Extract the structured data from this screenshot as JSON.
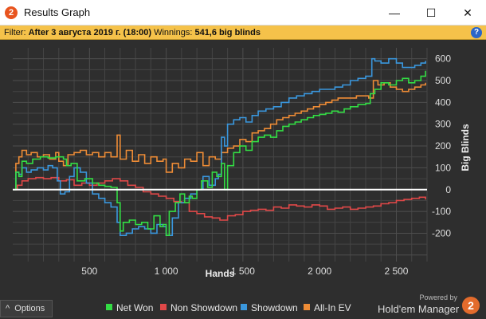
{
  "window": {
    "title": "Results Graph",
    "app_icon_text": "2",
    "minimize_label": "—",
    "maximize_label": "☐",
    "close_label": "✕"
  },
  "filter": {
    "prefix": "Filter:",
    "value": "After 3 августа 2019 г. (18:00)",
    "winnings_label": "Winnings:",
    "winnings_value": "541,6 big blinds",
    "help_icon_text": "?"
  },
  "options_button": {
    "label": "Options",
    "icon": "^"
  },
  "branding": {
    "powered_by": "Powered by",
    "name": "Hold'em Manager",
    "badge": "2"
  },
  "colors": {
    "net_won": "#33dd44",
    "non_showdown": "#e04848",
    "showdown": "#3a97dd",
    "all_in_ev": "#ee8c36",
    "zero_line": "#ffffff",
    "plot_bg": "#2e2e2e",
    "grid": "#454545"
  },
  "chart_data": {
    "type": "line",
    "xlabel": "Hands",
    "ylabel": "Big Blinds",
    "xlim": [
      0,
      2700
    ],
    "ylim": [
      -330,
      650
    ],
    "x_ticks": [
      500,
      1000,
      1500,
      2000,
      2500
    ],
    "x_tick_labels": [
      "500",
      "1 000",
      "1 500",
      "2 000",
      "2 500"
    ],
    "y_ticks": [
      -200,
      -100,
      0,
      100,
      200,
      300,
      400,
      500,
      600
    ],
    "y_tick_labels": [
      "-200",
      "-100",
      "0",
      "100",
      "200",
      "300",
      "400",
      "500",
      "600"
    ],
    "grid": true,
    "legend_position": "bottom",
    "series": [
      {
        "name": "Net Won",
        "points": [
          [
            0,
            0
          ],
          [
            20,
            80
          ],
          [
            40,
            60
          ],
          [
            60,
            130
          ],
          [
            90,
            120
          ],
          [
            130,
            140
          ],
          [
            180,
            150
          ],
          [
            230,
            145
          ],
          [
            280,
            150
          ],
          [
            330,
            140
          ],
          [
            350,
            110
          ],
          [
            380,
            120
          ],
          [
            420,
            40
          ],
          [
            470,
            50
          ],
          [
            520,
            30
          ],
          [
            560,
            20
          ],
          [
            600,
            15
          ],
          [
            640,
            10
          ],
          [
            680,
            -60
          ],
          [
            700,
            -190
          ],
          [
            720,
            -150
          ],
          [
            760,
            -140
          ],
          [
            800,
            -160
          ],
          [
            840,
            -150
          ],
          [
            880,
            -180
          ],
          [
            920,
            -120
          ],
          [
            960,
            -170
          ],
          [
            980,
            -160
          ],
          [
            1000,
            -210
          ],
          [
            1020,
            -100
          ],
          [
            1060,
            -60
          ],
          [
            1090,
            -20
          ],
          [
            1120,
            -60
          ],
          [
            1150,
            -30
          ],
          [
            1170,
            -40
          ],
          [
            1200,
            0
          ],
          [
            1230,
            40
          ],
          [
            1270,
            10
          ],
          [
            1300,
            80
          ],
          [
            1330,
            60
          ],
          [
            1360,
            120
          ],
          [
            1380,
            0
          ],
          [
            1400,
            110
          ],
          [
            1440,
            170
          ],
          [
            1480,
            200
          ],
          [
            1520,
            180
          ],
          [
            1560,
            220
          ],
          [
            1600,
            240
          ],
          [
            1640,
            250
          ],
          [
            1680,
            240
          ],
          [
            1720,
            270
          ],
          [
            1760,
            290
          ],
          [
            1800,
            300
          ],
          [
            1840,
            310
          ],
          [
            1880,
            320
          ],
          [
            1920,
            330
          ],
          [
            1960,
            340
          ],
          [
            2000,
            345
          ],
          [
            2040,
            350
          ],
          [
            2080,
            360
          ],
          [
            2120,
            355
          ],
          [
            2160,
            370
          ],
          [
            2200,
            380
          ],
          [
            2250,
            390
          ],
          [
            2300,
            395
          ],
          [
            2330,
            440
          ],
          [
            2360,
            460
          ],
          [
            2400,
            490
          ],
          [
            2450,
            480
          ],
          [
            2500,
            500
          ],
          [
            2540,
            510
          ],
          [
            2580,
            490
          ],
          [
            2620,
            500
          ],
          [
            2660,
            520
          ],
          [
            2690,
            545
          ]
        ]
      },
      {
        "name": "Non Showdown",
        "points": [
          [
            0,
            0
          ],
          [
            30,
            20
          ],
          [
            60,
            40
          ],
          [
            100,
            50
          ],
          [
            150,
            55
          ],
          [
            200,
            50
          ],
          [
            250,
            55
          ],
          [
            300,
            40
          ],
          [
            350,
            45
          ],
          [
            400,
            20
          ],
          [
            450,
            30
          ],
          [
            500,
            20
          ],
          [
            550,
            30
          ],
          [
            600,
            40
          ],
          [
            650,
            50
          ],
          [
            700,
            40
          ],
          [
            750,
            20
          ],
          [
            800,
            10
          ],
          [
            850,
            -10
          ],
          [
            900,
            -20
          ],
          [
            950,
            -30
          ],
          [
            1000,
            -40
          ],
          [
            1050,
            -55
          ],
          [
            1100,
            -60
          ],
          [
            1150,
            -100
          ],
          [
            1200,
            -110
          ],
          [
            1250,
            -125
          ],
          [
            1300,
            -130
          ],
          [
            1350,
            -140
          ],
          [
            1400,
            -120
          ],
          [
            1450,
            -115
          ],
          [
            1500,
            -100
          ],
          [
            1550,
            -95
          ],
          [
            1600,
            -90
          ],
          [
            1650,
            -95
          ],
          [
            1700,
            -80
          ],
          [
            1750,
            -85
          ],
          [
            1800,
            -70
          ],
          [
            1850,
            -75
          ],
          [
            1900,
            -80
          ],
          [
            1950,
            -70
          ],
          [
            2000,
            -75
          ],
          [
            2050,
            -90
          ],
          [
            2100,
            -85
          ],
          [
            2150,
            -80
          ],
          [
            2200,
            -90
          ],
          [
            2250,
            -85
          ],
          [
            2300,
            -80
          ],
          [
            2350,
            -75
          ],
          [
            2400,
            -65
          ],
          [
            2450,
            -60
          ],
          [
            2500,
            -50
          ],
          [
            2550,
            -45
          ],
          [
            2600,
            -40
          ],
          [
            2650,
            -35
          ],
          [
            2690,
            -45
          ]
        ]
      },
      {
        "name": "Showdown",
        "points": [
          [
            0,
            0
          ],
          [
            20,
            80
          ],
          [
            40,
            70
          ],
          [
            60,
            100
          ],
          [
            90,
            80
          ],
          [
            120,
            90
          ],
          [
            160,
            100
          ],
          [
            200,
            90
          ],
          [
            230,
            110
          ],
          [
            260,
            100
          ],
          [
            290,
            40
          ],
          [
            310,
            -20
          ],
          [
            340,
            -10
          ],
          [
            370,
            60
          ],
          [
            400,
            100
          ],
          [
            440,
            80
          ],
          [
            480,
            30
          ],
          [
            520,
            -20
          ],
          [
            560,
            -40
          ],
          [
            600,
            -60
          ],
          [
            640,
            -80
          ],
          [
            680,
            -150
          ],
          [
            700,
            -210
          ],
          [
            740,
            -200
          ],
          [
            780,
            -180
          ],
          [
            820,
            -170
          ],
          [
            860,
            -180
          ],
          [
            900,
            -200
          ],
          [
            940,
            -160
          ],
          [
            980,
            -170
          ],
          [
            1000,
            -210
          ],
          [
            1040,
            -130
          ],
          [
            1080,
            -60
          ],
          [
            1120,
            -40
          ],
          [
            1160,
            -20
          ],
          [
            1200,
            0
          ],
          [
            1240,
            60
          ],
          [
            1280,
            20
          ],
          [
            1320,
            50
          ],
          [
            1340,
            70
          ],
          [
            1360,
            240
          ],
          [
            1380,
            200
          ],
          [
            1400,
            300
          ],
          [
            1440,
            320
          ],
          [
            1480,
            330
          ],
          [
            1520,
            310
          ],
          [
            1560,
            340
          ],
          [
            1600,
            360
          ],
          [
            1650,
            370
          ],
          [
            1700,
            380
          ],
          [
            1750,
            400
          ],
          [
            1800,
            420
          ],
          [
            1850,
            430
          ],
          [
            1900,
            440
          ],
          [
            1950,
            450
          ],
          [
            2000,
            460
          ],
          [
            2050,
            460
          ],
          [
            2100,
            470
          ],
          [
            2150,
            480
          ],
          [
            2200,
            500
          ],
          [
            2250,
            510
          ],
          [
            2300,
            520
          ],
          [
            2340,
            600
          ],
          [
            2360,
            590
          ],
          [
            2400,
            580
          ],
          [
            2450,
            600
          ],
          [
            2500,
            580
          ],
          [
            2540,
            560
          ],
          [
            2580,
            560
          ],
          [
            2620,
            570
          ],
          [
            2660,
            580
          ],
          [
            2690,
            590
          ]
        ]
      },
      {
        "name": "All-In EV",
        "points": [
          [
            0,
            0
          ],
          [
            20,
            120
          ],
          [
            40,
            150
          ],
          [
            60,
            180
          ],
          [
            90,
            160
          ],
          [
            120,
            170
          ],
          [
            160,
            150
          ],
          [
            200,
            160
          ],
          [
            240,
            140
          ],
          [
            280,
            170
          ],
          [
            300,
            130
          ],
          [
            330,
            110
          ],
          [
            360,
            160
          ],
          [
            400,
            170
          ],
          [
            440,
            180
          ],
          [
            480,
            160
          ],
          [
            520,
            170
          ],
          [
            560,
            150
          ],
          [
            600,
            170
          ],
          [
            640,
            150
          ],
          [
            680,
            250
          ],
          [
            700,
            140
          ],
          [
            740,
            180
          ],
          [
            780,
            130
          ],
          [
            820,
            160
          ],
          [
            860,
            120
          ],
          [
            900,
            150
          ],
          [
            940,
            130
          ],
          [
            980,
            140
          ],
          [
            1000,
            80
          ],
          [
            1040,
            120
          ],
          [
            1080,
            100
          ],
          [
            1120,
            140
          ],
          [
            1160,
            130
          ],
          [
            1200,
            170
          ],
          [
            1240,
            110
          ],
          [
            1280,
            150
          ],
          [
            1320,
            140
          ],
          [
            1360,
            170
          ],
          [
            1400,
            190
          ],
          [
            1440,
            200
          ],
          [
            1480,
            230
          ],
          [
            1520,
            220
          ],
          [
            1560,
            260
          ],
          [
            1600,
            270
          ],
          [
            1640,
            280
          ],
          [
            1680,
            300
          ],
          [
            1720,
            320
          ],
          [
            1760,
            330
          ],
          [
            1800,
            340
          ],
          [
            1840,
            350
          ],
          [
            1880,
            360
          ],
          [
            1920,
            370
          ],
          [
            1960,
            380
          ],
          [
            2000,
            390
          ],
          [
            2040,
            400
          ],
          [
            2080,
            410
          ],
          [
            2120,
            420
          ],
          [
            2160,
            420
          ],
          [
            2200,
            420
          ],
          [
            2240,
            430
          ],
          [
            2280,
            430
          ],
          [
            2320,
            420
          ],
          [
            2350,
            500
          ],
          [
            2380,
            480
          ],
          [
            2420,
            490
          ],
          [
            2460,
            470
          ],
          [
            2500,
            460
          ],
          [
            2540,
            450
          ],
          [
            2580,
            460
          ],
          [
            2620,
            470
          ],
          [
            2660,
            480
          ],
          [
            2690,
            490
          ]
        ]
      }
    ]
  }
}
